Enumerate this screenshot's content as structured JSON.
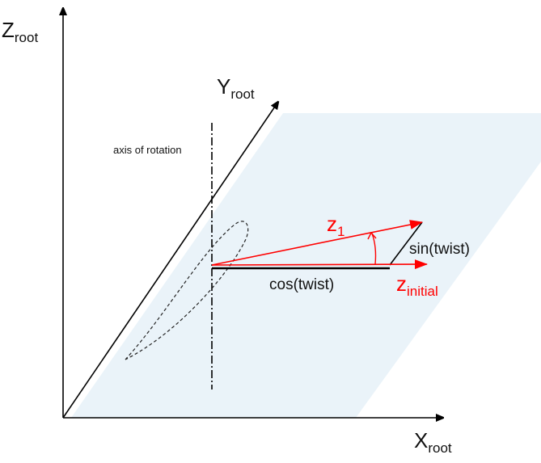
{
  "axes": {
    "z": {
      "main": "Z",
      "sub": "root"
    },
    "y": {
      "main": "Y",
      "sub": "root"
    },
    "x": {
      "main": "X",
      "sub": "root"
    }
  },
  "labels": {
    "axis_of_rotation": "axis of rotation",
    "z1_main": "z",
    "z1_sub": "1",
    "zinit_main": "z",
    "zinit_sub": "initial",
    "sin": "sin(twist)",
    "cos": "cos(twist)"
  },
  "colors": {
    "vector": "#ff0000",
    "plane": "#eaf3f9",
    "axis": "#000000"
  }
}
